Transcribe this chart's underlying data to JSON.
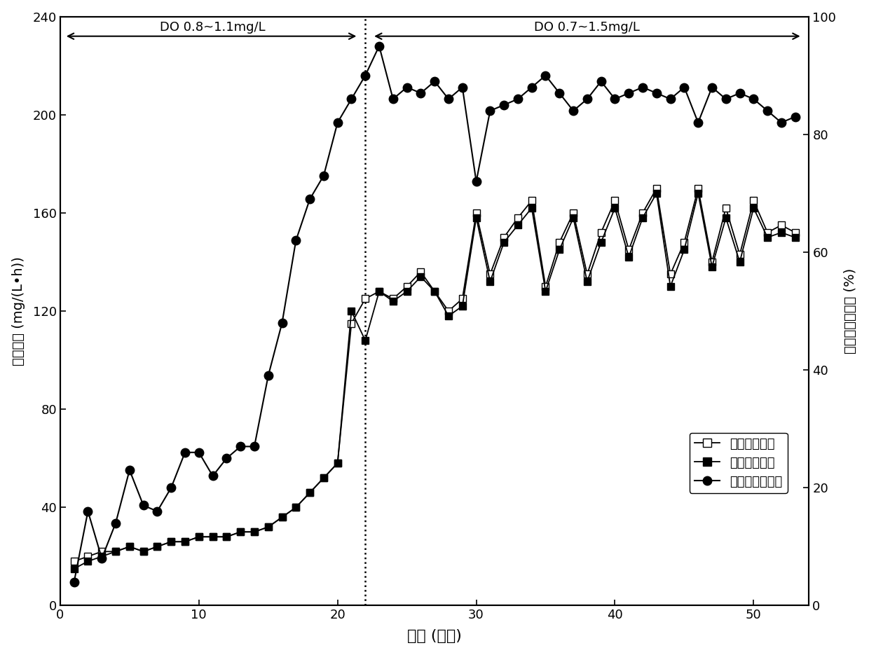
{
  "ammonia_flow_x": [
    1,
    2,
    3,
    4,
    5,
    6,
    7,
    8,
    9,
    10,
    11,
    12,
    13,
    14,
    15,
    16,
    17,
    18,
    19,
    20,
    21,
    22,
    23,
    24,
    25,
    26,
    27,
    28,
    29,
    30,
    31,
    32,
    33,
    34,
    35,
    36,
    37,
    38,
    39,
    40,
    41,
    42,
    43,
    44,
    45,
    46,
    47,
    48,
    49,
    50,
    51,
    52,
    53
  ],
  "ammonia_flow_y": [
    18,
    20,
    22,
    22,
    24,
    22,
    24,
    26,
    26,
    28,
    28,
    28,
    30,
    30,
    32,
    36,
    40,
    46,
    52,
    58,
    115,
    125,
    128,
    125,
    130,
    136,
    128,
    120,
    125,
    160,
    135,
    150,
    158,
    165,
    130,
    148,
    160,
    135,
    152,
    165,
    145,
    160,
    170,
    135,
    148,
    170,
    140,
    162,
    143,
    165,
    152,
    155,
    152
  ],
  "ammonia_oxid_x": [
    1,
    2,
    3,
    4,
    5,
    6,
    7,
    8,
    9,
    10,
    11,
    12,
    13,
    14,
    15,
    16,
    17,
    18,
    19,
    20,
    21,
    22,
    23,
    24,
    25,
    26,
    27,
    28,
    29,
    30,
    31,
    32,
    33,
    34,
    35,
    36,
    37,
    38,
    39,
    40,
    41,
    42,
    43,
    44,
    45,
    46,
    47,
    48,
    49,
    50,
    51,
    52,
    53
  ],
  "ammonia_oxid_y": [
    15,
    18,
    20,
    22,
    24,
    22,
    24,
    26,
    26,
    28,
    28,
    28,
    30,
    30,
    32,
    36,
    40,
    46,
    52,
    58,
    120,
    108,
    128,
    124,
    128,
    134,
    128,
    118,
    122,
    158,
    132,
    148,
    155,
    162,
    128,
    145,
    158,
    132,
    148,
    162,
    142,
    158,
    168,
    130,
    145,
    168,
    138,
    158,
    140,
    162,
    150,
    152,
    150
  ],
  "nitrite_x": [
    1,
    2,
    3,
    4,
    5,
    6,
    7,
    8,
    9,
    10,
    11,
    12,
    13,
    14,
    15,
    16,
    17,
    18,
    19,
    20,
    21,
    22,
    23,
    24,
    25,
    26,
    27,
    28,
    29,
    30,
    31,
    32,
    33,
    34,
    35,
    36,
    37,
    38,
    39,
    40,
    41,
    42,
    43,
    44,
    45,
    46,
    47,
    48,
    49,
    50,
    51,
    52,
    53
  ],
  "nitrite_y": [
    4,
    16,
    8,
    14,
    23,
    17,
    16,
    20,
    26,
    26,
    22,
    25,
    27,
    27,
    39,
    48,
    62,
    69,
    73,
    82,
    86,
    90,
    95,
    86,
    88,
    87,
    89,
    86,
    88,
    72,
    84,
    85,
    86,
    88,
    90,
    87,
    84,
    86,
    89,
    86,
    87,
    88,
    87,
    86,
    88,
    82,
    88,
    86,
    87,
    86,
    84,
    82,
    83
  ],
  "ylabel_left": "氨氮速率 (mg/(L•h))",
  "ylabel_right": "亚硕酸盐积累率 (%)",
  "xlabel": "时间 (周期)",
  "legend1": "氨氮流加速率",
  "legend2": "氨氮氧化速率",
  "legend3": "亚硕酸盐积累率",
  "do_label1": "DO 0.8~1.1mg/L",
  "do_label2": "DO 0.7~1.5mg/L",
  "vline_x": 22,
  "xlim": [
    0,
    54
  ],
  "ylim_left": [
    0,
    240
  ],
  "ylim_right": [
    0,
    100
  ],
  "yticks_left": [
    0,
    40,
    80,
    120,
    160,
    200,
    240
  ],
  "yticks_right": [
    0,
    20,
    40,
    60,
    80,
    100
  ],
  "xticks": [
    0,
    10,
    20,
    30,
    40,
    50
  ]
}
